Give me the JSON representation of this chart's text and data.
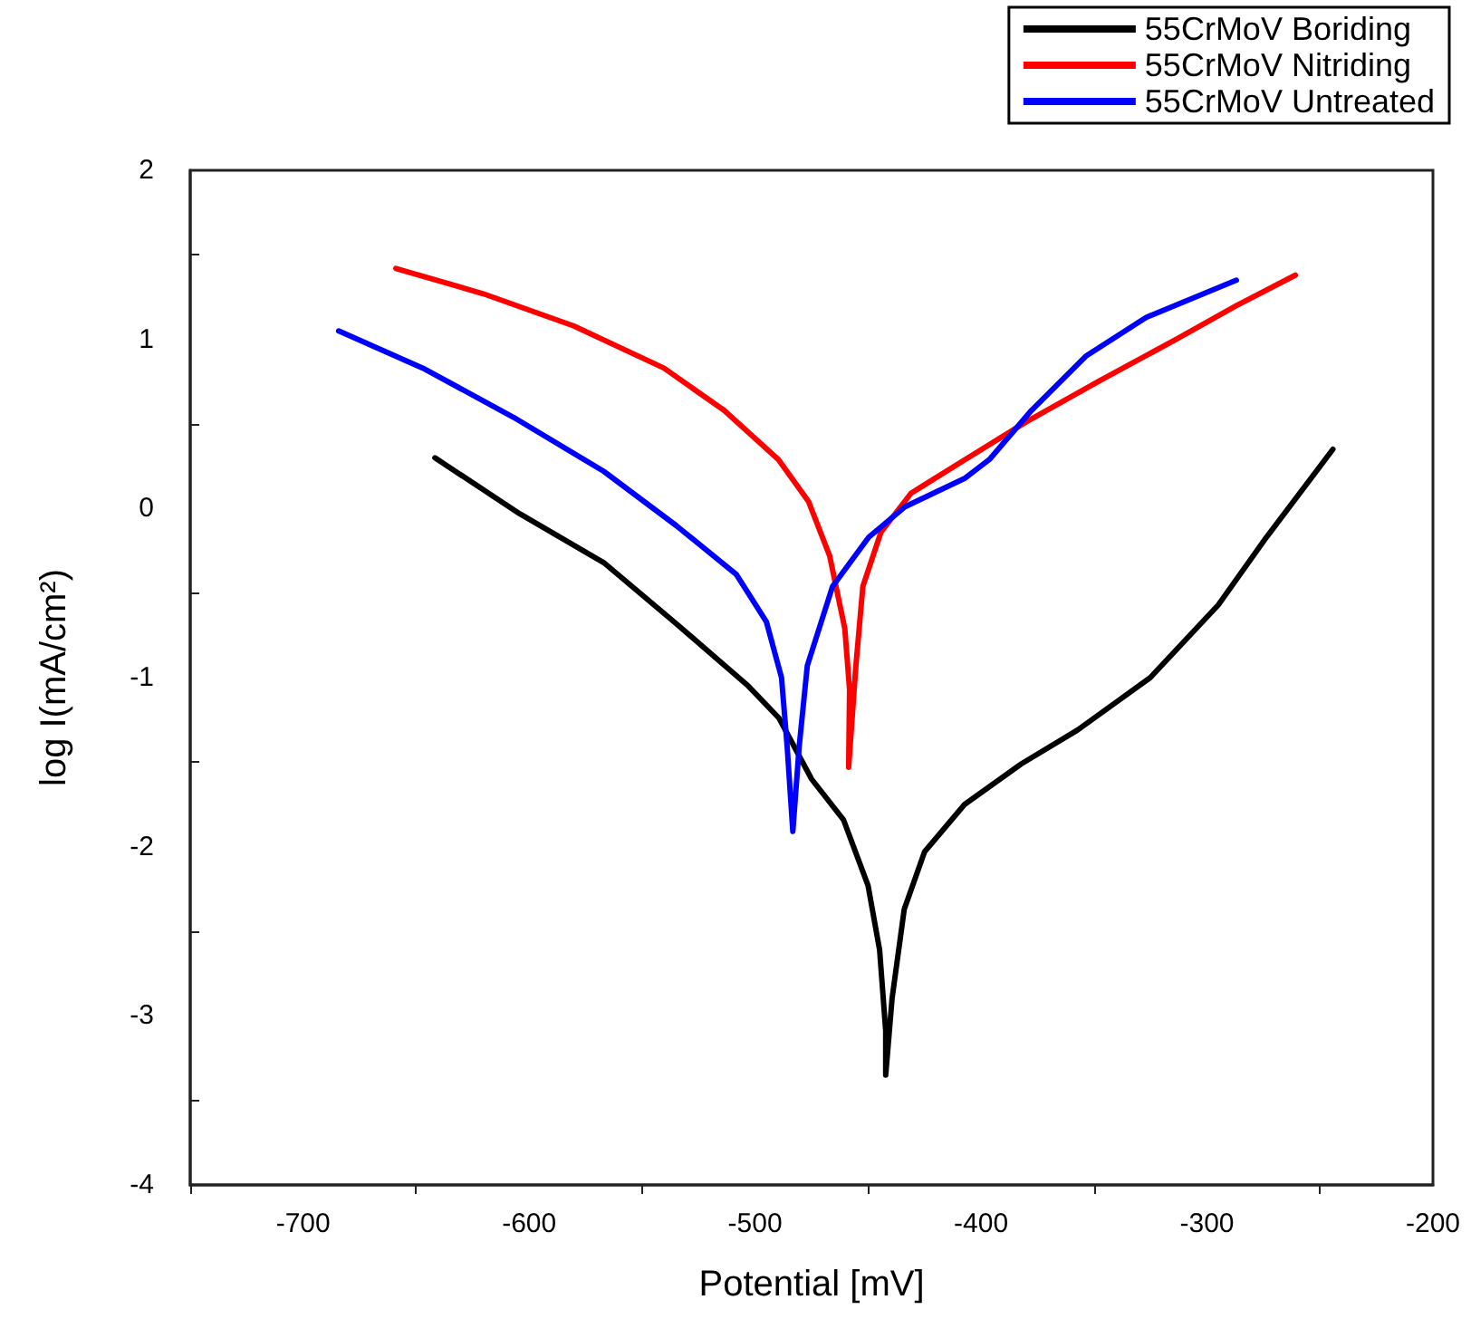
{
  "chart_data": {
    "type": "line",
    "xlabel": "Potential [mV]",
    "ylabel": "log I(mA/cm²)",
    "xlim": [
      -750,
      -200
    ],
    "ylim": [
      -4,
      2
    ],
    "xticks": [
      {
        "value": -750,
        "label": null
      },
      -700,
      {
        "value": -650,
        "label": null
      },
      -600,
      {
        "value": -550,
        "label": null
      },
      -500,
      {
        "value": -450,
        "label": null
      },
      -400,
      {
        "value": -350,
        "label": null
      },
      -300,
      {
        "value": -250,
        "label": null
      },
      -200
    ],
    "yticks": [
      -4,
      {
        "value": -3.5,
        "label": null
      },
      -3,
      {
        "value": -2.5,
        "label": null
      },
      -2,
      {
        "value": -1.5,
        "label": null
      },
      -1,
      {
        "value": -0.5,
        "label": null
      },
      0,
      {
        "value": 0.5,
        "label": null
      },
      1,
      {
        "value": 1.5,
        "label": null
      },
      2
    ],
    "grid": false,
    "legend": "top right",
    "marker": "none",
    "line_style": "solid",
    "series": [
      {
        "name": "55CrMoV Boriding",
        "color": "#000000",
        "x": [
          -641.7,
          -604.3,
          -567,
          -535,
          -503,
          -489.4,
          -475,
          -460.9,
          -450,
          -444.9,
          -442.2,
          -442.2,
          -439.4,
          -434,
          -425,
          -407.3,
          -382.2,
          -357.3,
          -325.1,
          -295,
          -273.7,
          -244.3
        ],
        "values": [
          0.3,
          -0.03,
          -0.32,
          -0.68,
          -1.05,
          -1.24,
          -1.6,
          -1.84,
          -2.23,
          -2.61,
          -3.09,
          -3.35,
          -2.9,
          -2.37,
          -2.03,
          -1.75,
          -1.51,
          -1.31,
          -1.0,
          -0.57,
          -0.17,
          0.35
        ]
      },
      {
        "name": "55CrMoV Nitriding",
        "color": "#ff0000",
        "x": [
          -659,
          -620.3,
          -580.3,
          -540.3,
          -513.7,
          -489.7,
          -476.3,
          -467,
          -460.3,
          -458.2,
          -458.6,
          -455.4,
          -452.3,
          -444.3,
          -431,
          -407,
          -380.3,
          -348.3,
          -313.7,
          -287,
          -260.9
        ],
        "values": [
          1.42,
          1.27,
          1.08,
          0.83,
          0.58,
          0.29,
          0.04,
          -0.28,
          -0.71,
          -1.07,
          -1.53,
          -0.93,
          -0.46,
          -0.14,
          0.09,
          0.29,
          0.51,
          0.75,
          1.0,
          1.2,
          1.38
        ]
      },
      {
        "name": "55CrMoV Untreated",
        "color": "#0000ff",
        "x": [
          -684.3,
          -647,
          -607,
          -567,
          -535,
          -508.3,
          -495,
          -488.3,
          -485.8,
          -483.3,
          -480.5,
          -476.9,
          -465.7,
          -449.7,
          -433.7,
          -407,
          -396.3,
          -377.7,
          -353.7,
          -327,
          -287
        ],
        "values": [
          1.05,
          0.83,
          0.54,
          0.22,
          -0.1,
          -0.39,
          -0.67,
          -1.0,
          -1.41,
          -1.91,
          -1.41,
          -0.93,
          -0.46,
          -0.17,
          0.01,
          0.18,
          0.29,
          0.58,
          0.9,
          1.13,
          1.35
        ]
      }
    ]
  }
}
